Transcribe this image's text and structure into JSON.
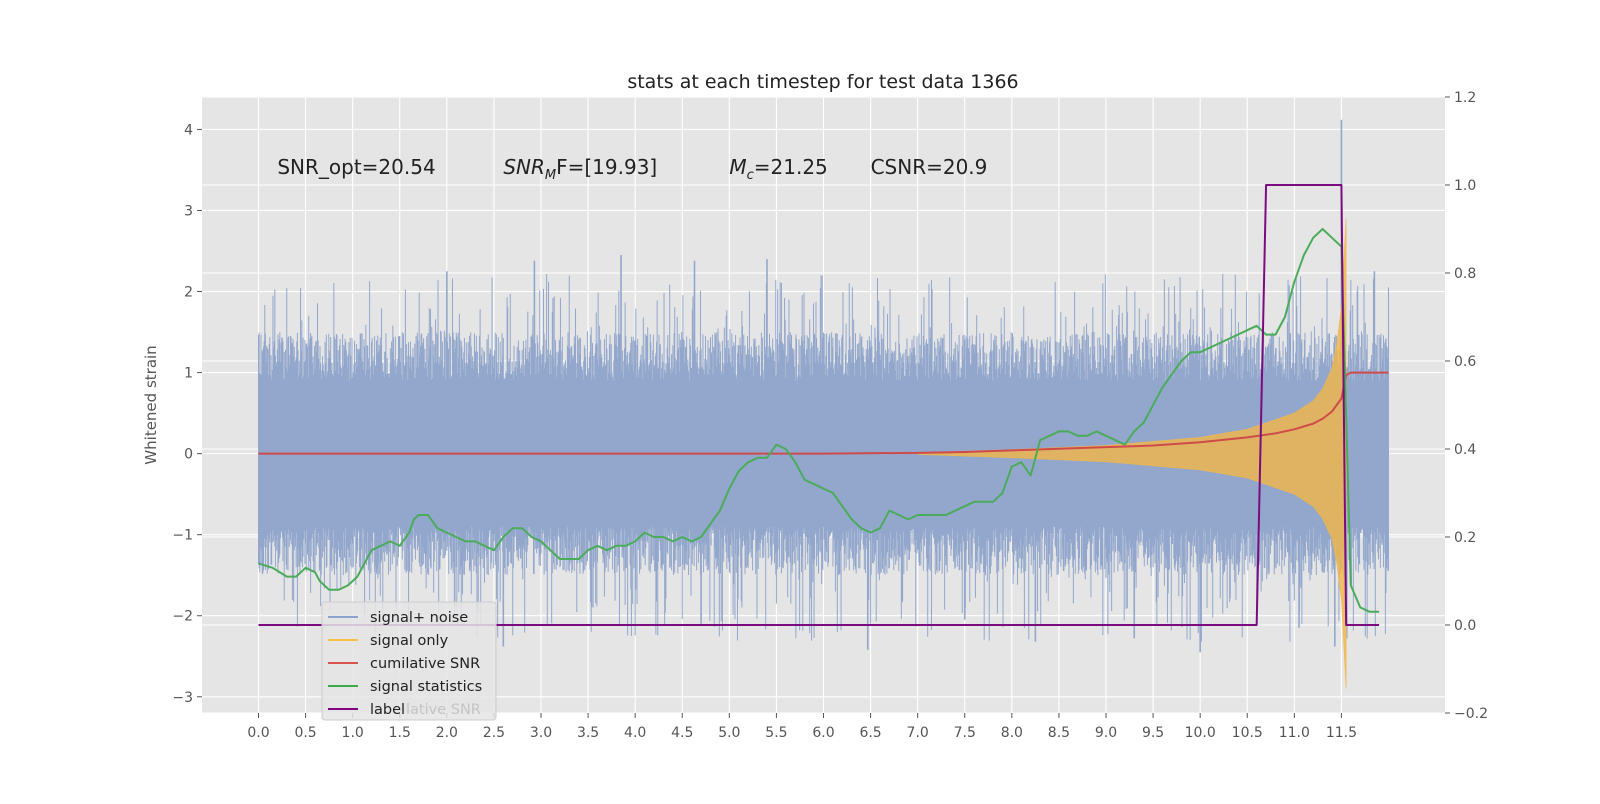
{
  "chart_data": {
    "type": "line",
    "title": "stats at each timestep for test data 1366",
    "xlabel": "",
    "ylabel": "Whitened strain",
    "xlim": [
      -0.6,
      12.6
    ],
    "ylim": [
      -3.2,
      4.4
    ],
    "y2lim": [
      -0.2,
      1.2
    ],
    "grid": true,
    "background": "#e5e5e5",
    "x_ticks": [
      0.0,
      0.5,
      1.0,
      1.5,
      2.0,
      2.5,
      3.0,
      3.5,
      4.0,
      4.5,
      5.0,
      5.5,
      6.0,
      6.5,
      7.0,
      7.5,
      8.0,
      8.5,
      9.0,
      9.5,
      10.0,
      10.5,
      11.0,
      11.5
    ],
    "x_tick_labels": [
      "0.0",
      "0.5",
      "1.0",
      "1.5",
      "2.0",
      "2.5",
      "3.0",
      "3.5",
      "4.0",
      "4.5",
      "5.0",
      "5.5",
      "6.0",
      "6.5",
      "7.0",
      "7.5",
      "8.0",
      "8.5",
      "9.0",
      "9.5",
      "10.0",
      "10.5",
      "11.0",
      "11.5"
    ],
    "y_ticks": [
      -3,
      -2,
      -1,
      0,
      1,
      2,
      3,
      4
    ],
    "y_tick_labels": [
      "−3",
      "−2",
      "−1",
      "0",
      "1",
      "2",
      "3",
      "4"
    ],
    "y2_ticks": [
      -0.2,
      0.0,
      0.2,
      0.4,
      0.6,
      0.8,
      1.0,
      1.2
    ],
    "y2_tick_labels": [
      "−0.2",
      "0.0",
      "0.2",
      "0.4",
      "0.6",
      "0.8",
      "1.0",
      "1.2"
    ],
    "annotations": [
      {
        "id": "snr-opt",
        "text": "SNR_opt=20.54",
        "x": 0.2,
        "y": 3.45
      },
      {
        "id": "snr-mf",
        "sym": "SNR",
        "sub": "M",
        "rest": "F=[19.93]",
        "x": 2.6,
        "y": 3.45
      },
      {
        "id": "mc",
        "sym": "M",
        "sub": "c",
        "rest": "=21.25",
        "x": 5.0,
        "y": 3.45
      },
      {
        "id": "csnr",
        "text": "CSNR=20.9",
        "x": 6.5,
        "y": 3.45
      }
    ],
    "legend": {
      "placement": "lower-left",
      "entries": [
        {
          "label": "signal+ noise",
          "color": "#8da3cc"
        },
        {
          "label": "signal only",
          "color": "#f5c242"
        },
        {
          "label": "cumilative SNR",
          "color": "#d9534f"
        },
        {
          "label": "signal statistics",
          "color": "#3aaa4a"
        },
        {
          "label": "label",
          "color": "#800080"
        }
      ],
      "ghost_text": "lative SNR"
    },
    "series": [
      {
        "name": "signal+ noise",
        "axis": "left",
        "color": "#93a7cc",
        "x_range": [
          0.0,
          12.0
        ],
        "noise_band": {
          "typical_low": -1.2,
          "typical_high": 1.2,
          "peak_high": 2.4,
          "peak_low": -2.5
        },
        "spikes": [
          {
            "x": 2.93,
            "y": 2.38
          },
          {
            "x": 3.85,
            "y": 2.45
          },
          {
            "x": 4.63,
            "y": 2.38
          },
          {
            "x": 5.4,
            "y": 2.4
          },
          {
            "x": 2.0,
            "y": 2.25
          },
          {
            "x": 11.5,
            "y": 4.12
          },
          {
            "x": 11.85,
            "y": 2.25
          },
          {
            "x": 11.43,
            "y": -2.38
          },
          {
            "x": 11.05,
            "y": -2.15
          },
          {
            "x": 6.47,
            "y": -2.42
          },
          {
            "x": 10.0,
            "y": -2.45
          },
          {
            "x": 2.6,
            "y": -2.38
          },
          {
            "x": 9.3,
            "y": -2.28
          },
          {
            "x": 8.25,
            "y": -2.32
          },
          {
            "x": 4.7,
            "y": -2.1
          },
          {
            "x": 7.5,
            "y": -2.05
          },
          {
            "x": 6.0,
            "y": 0.85
          }
        ]
      },
      {
        "name": "signal only",
        "axis": "left",
        "color": "#f0b64a",
        "envelope": [
          [
            7.0,
            0.01
          ],
          [
            8.0,
            0.05
          ],
          [
            9.0,
            0.1
          ],
          [
            10.0,
            0.2
          ],
          [
            10.5,
            0.3
          ],
          [
            11.0,
            0.5
          ],
          [
            11.2,
            0.65
          ],
          [
            11.3,
            0.8
          ],
          [
            11.4,
            1.05
          ],
          [
            11.45,
            1.35
          ],
          [
            11.5,
            1.8
          ],
          [
            11.55,
            2.9
          ]
        ],
        "cutoff_x": 11.55
      },
      {
        "name": "cumilative SNR",
        "axis": "left",
        "color": "#cf4b4b",
        "x": [
          0.0,
          2.0,
          4.0,
          6.0,
          7.0,
          7.5,
          8.0,
          8.5,
          9.0,
          9.5,
          10.0,
          10.5,
          10.8,
          11.0,
          11.2,
          11.3,
          11.4,
          11.5,
          11.55,
          11.6,
          12.0
        ],
        "y": [
          0.0,
          0.0,
          0.0,
          0.0,
          0.01,
          0.02,
          0.04,
          0.06,
          0.08,
          0.1,
          0.14,
          0.2,
          0.25,
          0.3,
          0.37,
          0.43,
          0.52,
          0.68,
          0.97,
          1.0,
          1.0
        ]
      },
      {
        "name": "signal statistics",
        "axis": "right",
        "color": "#4aac5a",
        "x": [
          0.0,
          0.15,
          0.3,
          0.4,
          0.5,
          0.6,
          0.65,
          0.75,
          0.85,
          0.95,
          1.05,
          1.2,
          1.3,
          1.4,
          1.5,
          1.6,
          1.65,
          1.7,
          1.8,
          1.9,
          2.0,
          2.1,
          2.2,
          2.3,
          2.4,
          2.5,
          2.6,
          2.7,
          2.8,
          2.9,
          3.0,
          3.1,
          3.2,
          3.3,
          3.4,
          3.5,
          3.6,
          3.7,
          3.8,
          3.9,
          4.0,
          4.1,
          4.2,
          4.3,
          4.4,
          4.5,
          4.6,
          4.7,
          4.8,
          4.9,
          5.0,
          5.1,
          5.2,
          5.3,
          5.4,
          5.5,
          5.6,
          5.7,
          5.8,
          5.9,
          6.0,
          6.1,
          6.2,
          6.3,
          6.4,
          6.5,
          6.6,
          6.7,
          6.8,
          6.9,
          7.0,
          7.1,
          7.2,
          7.3,
          7.4,
          7.5,
          7.6,
          7.7,
          7.8,
          7.9,
          8.0,
          8.1,
          8.2,
          8.3,
          8.4,
          8.5,
          8.6,
          8.7,
          8.8,
          8.9,
          9.0,
          9.1,
          9.2,
          9.3,
          9.4,
          9.5,
          9.6,
          9.7,
          9.8,
          9.9,
          10.0,
          10.1,
          10.2,
          10.3,
          10.4,
          10.5,
          10.6,
          10.7,
          10.8,
          10.9,
          11.0,
          11.1,
          11.2,
          11.3,
          11.4,
          11.5,
          11.6,
          11.7,
          11.8,
          11.9
        ],
        "y": [
          0.14,
          0.13,
          0.11,
          0.11,
          0.13,
          0.12,
          0.1,
          0.08,
          0.08,
          0.09,
          0.11,
          0.17,
          0.18,
          0.19,
          0.18,
          0.21,
          0.24,
          0.25,
          0.25,
          0.22,
          0.21,
          0.2,
          0.19,
          0.19,
          0.18,
          0.17,
          0.2,
          0.22,
          0.22,
          0.2,
          0.19,
          0.17,
          0.15,
          0.15,
          0.15,
          0.17,
          0.18,
          0.17,
          0.18,
          0.18,
          0.19,
          0.21,
          0.2,
          0.2,
          0.19,
          0.2,
          0.19,
          0.2,
          0.23,
          0.26,
          0.31,
          0.35,
          0.37,
          0.38,
          0.38,
          0.41,
          0.4,
          0.37,
          0.33,
          0.32,
          0.31,
          0.3,
          0.27,
          0.24,
          0.22,
          0.21,
          0.22,
          0.26,
          0.25,
          0.24,
          0.25,
          0.25,
          0.25,
          0.25,
          0.26,
          0.27,
          0.28,
          0.28,
          0.28,
          0.3,
          0.36,
          0.37,
          0.34,
          0.42,
          0.43,
          0.44,
          0.44,
          0.43,
          0.43,
          0.44,
          0.43,
          0.42,
          0.41,
          0.44,
          0.46,
          0.5,
          0.54,
          0.57,
          0.6,
          0.62,
          0.62,
          0.63,
          0.64,
          0.65,
          0.66,
          0.67,
          0.68,
          0.66,
          0.66,
          0.7,
          0.78,
          0.84,
          0.88,
          0.9,
          0.88,
          0.86,
          0.09,
          0.04,
          0.03,
          0.03
        ]
      },
      {
        "name": "label",
        "axis": "right",
        "color": "#7b0c7f",
        "x": [
          0.0,
          10.6,
          10.7,
          11.5,
          11.55,
          11.9
        ],
        "y": [
          0.0,
          0.0,
          1.0,
          1.0,
          0.0,
          0.0
        ]
      }
    ]
  }
}
